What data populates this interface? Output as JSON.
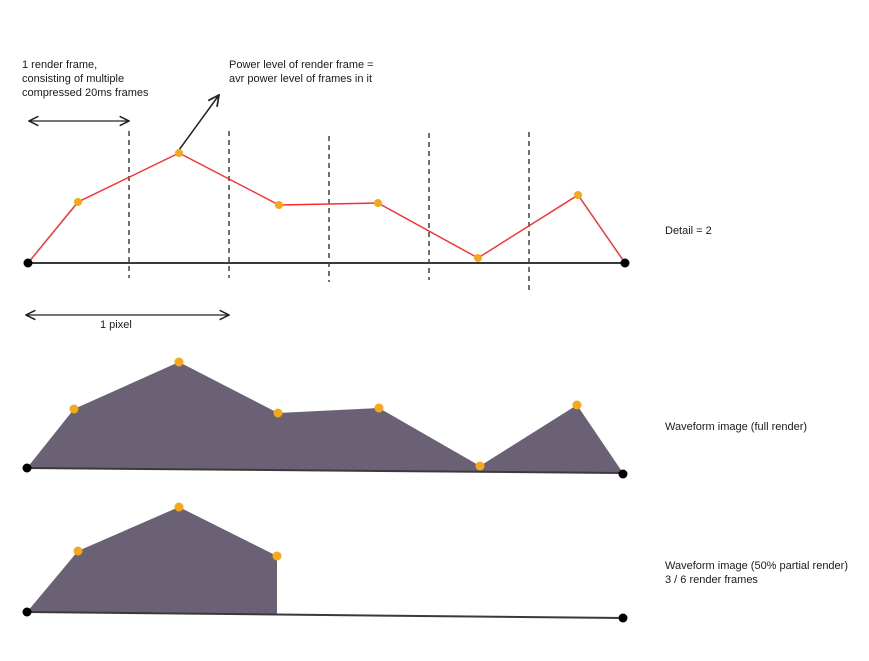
{
  "annotations": {
    "render_frame_lines": [
      "1 render frame,",
      "consisting of multiple",
      "compressed 20ms frames"
    ],
    "power_level_lines": [
      "Power level of render frame =",
      "avr power level of frames in it"
    ],
    "pixel_label": "1 pixel"
  },
  "panels": [
    {
      "id": "detail",
      "side_label_lines": [
        "Detail = 2"
      ],
      "fill": false
    },
    {
      "id": "full",
      "side_label_lines": [
        "Waveform image (full render)"
      ],
      "fill": true
    },
    {
      "id": "partial",
      "side_label_lines": [
        "Waveform image (50% partial render)",
        "3 / 6 render frames"
      ],
      "fill": true
    }
  ],
  "colors": {
    "line": "#ff2a2a",
    "point": "#f6a81b",
    "fill": "#6a6274",
    "axis": "#3a3a3a",
    "endpoint": "#000000",
    "divider": "#333333"
  }
}
